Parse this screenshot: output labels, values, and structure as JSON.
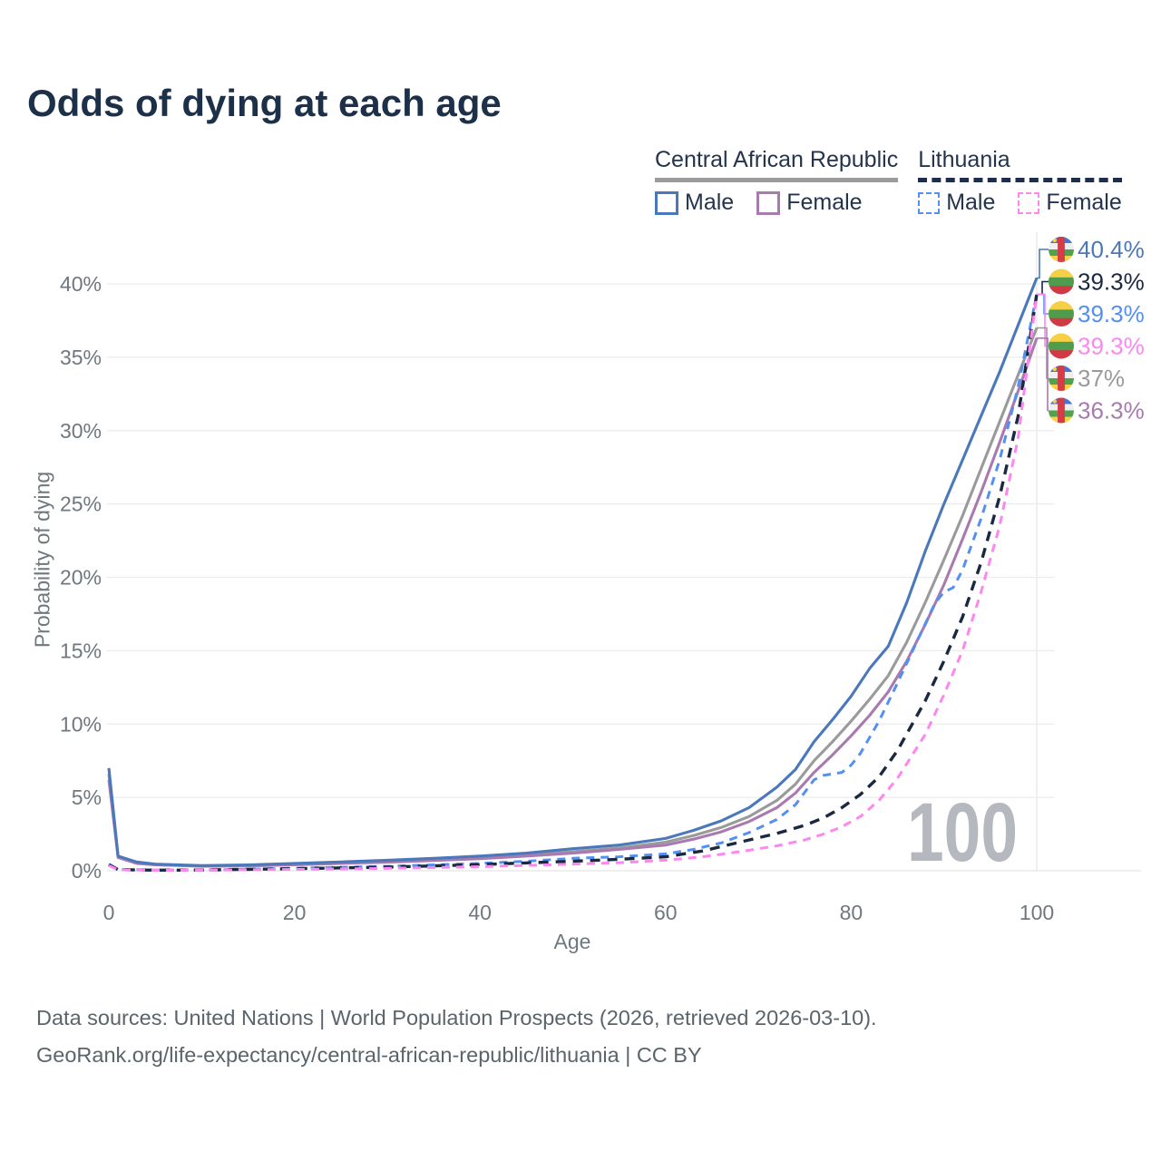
{
  "header": {
    "title": "Odds of dying at each age"
  },
  "legend": {
    "groups": [
      {
        "title": "Central African Republic",
        "underline_style": "solid",
        "underline_color": "#9b9b9b",
        "items": [
          {
            "label": "Male",
            "color": "#4a78ba",
            "dashed": false
          },
          {
            "label": "Female",
            "color": "#a97ab0",
            "dashed": false
          }
        ]
      },
      {
        "title": "Lithuania",
        "underline_style": "dashed",
        "underline_color": "#1e2d4b",
        "items": [
          {
            "label": "Male",
            "color": "#5390f2",
            "dashed": true
          },
          {
            "label": "Female",
            "color": "#fb87ef",
            "dashed": true
          }
        ]
      }
    ]
  },
  "chart_data": {
    "type": "line",
    "title": "Odds of dying at each age",
    "xlabel": "Age",
    "ylabel": "Probability of dying",
    "xlim": [
      0,
      100
    ],
    "ylim": [
      0,
      42
    ],
    "grid": "horizontal",
    "legend_position": "top-right",
    "xticks": [
      0,
      20,
      40,
      60,
      80,
      100
    ],
    "yticks": [
      {
        "value": 0,
        "label": "0%"
      },
      {
        "value": 5,
        "label": "5%"
      },
      {
        "value": 10,
        "label": "10%"
      },
      {
        "value": 15,
        "label": "15%"
      },
      {
        "value": 20,
        "label": "20%"
      },
      {
        "value": 25,
        "label": "25%"
      },
      {
        "value": 30,
        "label": "30%"
      },
      {
        "value": 35,
        "label": "35%"
      },
      {
        "value": 40,
        "label": "40%"
      }
    ],
    "age_marker": {
      "value": 100,
      "label": "100"
    },
    "flags": {
      "caf": {
        "stripes": [
          "#4d74c6",
          "#efefef",
          "#52a14f",
          "#f5d247"
        ],
        "band": "#d63c47",
        "star": "#f5d247"
      },
      "ltu": {
        "stripes": [
          "#f5cf45",
          "#4f9d4c",
          "#cf3a44"
        ]
      }
    },
    "series": [
      {
        "name": "Central African Republic Total",
        "country": "Central African Republic",
        "group": "Total",
        "color": "#9a9a9a",
        "dash": false,
        "x": [
          0,
          1,
          3,
          5,
          10,
          15,
          20,
          25,
          30,
          35,
          40,
          45,
          50,
          55,
          60,
          63,
          66,
          69,
          72,
          74,
          76,
          78,
          80,
          82,
          84,
          86,
          88,
          90,
          92,
          94,
          96,
          98,
          100
        ],
        "y": [
          6.6,
          0.95,
          0.55,
          0.42,
          0.32,
          0.36,
          0.45,
          0.55,
          0.65,
          0.77,
          0.9,
          1.08,
          1.3,
          1.55,
          1.95,
          2.4,
          2.95,
          3.7,
          4.8,
          5.9,
          7.5,
          8.8,
          10.2,
          11.7,
          13.3,
          15.6,
          18.3,
          21.2,
          24.2,
          27.4,
          30.6,
          33.8,
          37.0
        ]
      },
      {
        "name": "Central African Republic Female",
        "country": "Central African Republic",
        "group": "Female",
        "color": "#a97ab0",
        "dash": false,
        "x": [
          0,
          1,
          3,
          5,
          10,
          15,
          20,
          25,
          30,
          35,
          40,
          45,
          50,
          55,
          60,
          63,
          66,
          69,
          72,
          74,
          76,
          78,
          80,
          82,
          84,
          86,
          88,
          90,
          92,
          94,
          96,
          98,
          100
        ],
        "y": [
          6.2,
          0.9,
          0.5,
          0.4,
          0.3,
          0.33,
          0.4,
          0.5,
          0.58,
          0.7,
          0.82,
          1.0,
          1.2,
          1.45,
          1.75,
          2.15,
          2.65,
          3.35,
          4.3,
          5.3,
          6.7,
          7.9,
          9.2,
          10.6,
          12.2,
          14.3,
          16.8,
          19.5,
          22.6,
          25.8,
          29.2,
          32.7,
          36.3
        ]
      },
      {
        "name": "Central African Republic Male",
        "country": "Central African Republic",
        "group": "Male",
        "color": "#4a78ba",
        "dash": false,
        "x": [
          0,
          1,
          3,
          5,
          10,
          15,
          20,
          25,
          30,
          35,
          40,
          45,
          50,
          55,
          60,
          63,
          66,
          69,
          72,
          74,
          76,
          78,
          80,
          82,
          84,
          86,
          88,
          90,
          92,
          94,
          96,
          98,
          100
        ],
        "y": [
          7.0,
          1.0,
          0.6,
          0.45,
          0.35,
          0.4,
          0.5,
          0.6,
          0.72,
          0.85,
          1.0,
          1.2,
          1.5,
          1.75,
          2.2,
          2.75,
          3.4,
          4.3,
          5.7,
          6.9,
          8.8,
          10.3,
          11.9,
          13.8,
          15.3,
          18.3,
          21.8,
          25.0,
          28.0,
          31.0,
          34.0,
          37.2,
          40.4
        ]
      },
      {
        "name": "Lithuania Male",
        "country": "Lithuania",
        "group": "Male",
        "color": "#5390f2",
        "dash": true,
        "x": [
          0,
          1,
          5,
          10,
          15,
          20,
          25,
          30,
          35,
          40,
          45,
          50,
          55,
          60,
          63,
          66,
          69,
          72,
          74,
          76,
          77,
          78,
          79,
          80,
          81,
          83,
          85,
          87,
          89,
          90,
          91,
          92,
          94,
          96,
          98,
          100
        ],
        "y": [
          0.45,
          0.1,
          0.05,
          0.06,
          0.1,
          0.18,
          0.24,
          0.3,
          0.4,
          0.5,
          0.65,
          0.85,
          0.95,
          1.15,
          1.45,
          1.9,
          2.6,
          3.5,
          4.5,
          6.2,
          6.5,
          6.6,
          6.7,
          7.2,
          8.0,
          10.2,
          12.8,
          15.5,
          18.2,
          19.0,
          19.3,
          20.5,
          24.0,
          28.0,
          33.0,
          39.3
        ]
      },
      {
        "name": "Lithuania Total",
        "country": "Lithuania",
        "group": "Total",
        "color": "#1b2940",
        "dash": true,
        "x": [
          0,
          1,
          5,
          10,
          20,
          30,
          40,
          50,
          55,
          60,
          64,
          68,
          72,
          75,
          77,
          79,
          81,
          83,
          85,
          88,
          90,
          92,
          94,
          96,
          98,
          100
        ],
        "y": [
          0.4,
          0.08,
          0.04,
          0.05,
          0.14,
          0.25,
          0.42,
          0.65,
          0.78,
          0.95,
          1.35,
          1.95,
          2.55,
          3.1,
          3.6,
          4.3,
          5.2,
          6.4,
          8.2,
          11.6,
          14.3,
          17.3,
          21.0,
          25.5,
          31.0,
          39.3
        ]
      },
      {
        "name": "Lithuania Female",
        "country": "Lithuania",
        "group": "Female",
        "color": "#fb87ef",
        "dash": true,
        "x": [
          0,
          1,
          5,
          10,
          20,
          30,
          40,
          50,
          55,
          60,
          64,
          68,
          72,
          75,
          77,
          79,
          81,
          83,
          85,
          88,
          90,
          92,
          94,
          96,
          98,
          100
        ],
        "y": [
          0.35,
          0.06,
          0.03,
          0.04,
          0.09,
          0.16,
          0.28,
          0.45,
          0.55,
          0.72,
          0.95,
          1.3,
          1.7,
          2.1,
          2.5,
          3.0,
          3.7,
          4.8,
          6.3,
          9.3,
          12.0,
          15.0,
          19.0,
          23.5,
          29.5,
          39.3
        ]
      }
    ],
    "end_labels": [
      {
        "text": "40.4%",
        "value": 40.4,
        "color": "#4a78ba",
        "flag": "caf",
        "series": "Central African Republic Male"
      },
      {
        "text": "39.3%",
        "value": 39.3,
        "color": "#1b2940",
        "flag": "ltu",
        "series": "Lithuania Total"
      },
      {
        "text": "39.3%",
        "value": 39.3,
        "color": "#5390f2",
        "flag": "ltu",
        "series": "Lithuania Male"
      },
      {
        "text": "39.3%",
        "value": 39.3,
        "color": "#fb87ef",
        "flag": "ltu",
        "series": "Lithuania Female"
      },
      {
        "text": "37%",
        "value": 37.0,
        "color": "#9a9a9a",
        "flag": "caf",
        "series": "Central African Republic Total"
      },
      {
        "text": "36.3%",
        "value": 36.3,
        "color": "#a97ab0",
        "flag": "caf",
        "series": "Central African Republic Female"
      }
    ]
  },
  "footer": {
    "line1": "Data sources: United Nations | World Population Prospects (2026, retrieved 2026-03-10).",
    "line2": "GeoRank.org/life-expectancy/central-african-republic/lithuania | CC BY"
  }
}
